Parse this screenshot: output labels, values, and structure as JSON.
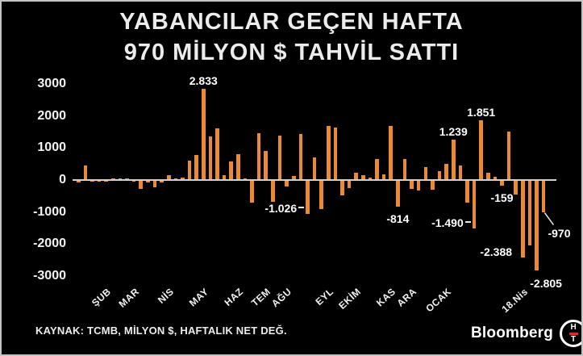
{
  "title": {
    "line1": "YABANCILAR GEÇEN HAFTA",
    "line2": "970 MİLYON $ TAHVİL SATTI"
  },
  "footer": {
    "source": "KAYNAK: TCMB, MİLYON $, HAFTALIK NET DEĞ."
  },
  "branding": {
    "name": "Bloomberg",
    "icon_top": "H",
    "icon_bottom": "T"
  },
  "colors": {
    "background": "#000000",
    "bar": "#EC8A33",
    "text": "#FFFFFF",
    "axis_line": "#CFCFCF",
    "frame_border": "#C4C4C4",
    "logo_red": "#D93025"
  },
  "chart_data": {
    "type": "bar",
    "title": "YABANCILAR GEÇEN HAFTA 970 MİLYON $ TAHVİL SATTI",
    "unit": "MİLYON $",
    "ylim": [
      -3000,
      3000
    ],
    "grid": false,
    "y_ticks": [
      3000,
      2000,
      1000,
      0,
      -1000,
      -2000,
      -3000
    ],
    "values": [
      -60,
      440,
      -30,
      -25,
      -20,
      30,
      20,
      25,
      -20,
      -250,
      -60,
      -190,
      -40,
      130,
      30,
      60,
      590,
      760,
      2833,
      1340,
      1590,
      130,
      550,
      780,
      30,
      -670,
      1440,
      890,
      -660,
      1370,
      -170,
      100,
      1410,
      -1026,
      670,
      -870,
      1670,
      1600,
      -450,
      -220,
      200,
      120,
      40,
      620,
      140,
      1650,
      -814,
      640,
      -250,
      -300,
      370,
      -280,
      250,
      480,
      1239,
      430,
      -670,
      -1490,
      1851,
      190,
      80,
      -159,
      1475,
      -420,
      -2388,
      -2020,
      -2805,
      -970
    ],
    "month_ticks": [
      {
        "label": "ŞUB",
        "bar": 3
      },
      {
        "label": "MAR",
        "bar": 7
      },
      {
        "label": "NİS",
        "bar": 12
      },
      {
        "label": "MAY",
        "bar": 17
      },
      {
        "label": "HAZ",
        "bar": 22
      },
      {
        "label": "TEM",
        "bar": 26
      },
      {
        "label": "AĞU",
        "bar": 29
      },
      {
        "label": "EYL",
        "bar": 35
      },
      {
        "label": "EKİM",
        "bar": 39
      },
      {
        "label": "KAS",
        "bar": 44
      },
      {
        "label": "ARA",
        "bar": 47
      },
      {
        "label": "OCAK",
        "bar": 52
      },
      {
        "label": "18.Nis",
        "bar": 63
      }
    ],
    "value_labels": [
      {
        "text": "2.833",
        "bar": 18,
        "pos": "above"
      },
      {
        "text": "-1.026",
        "bar": 33,
        "pos": "left-dash"
      },
      {
        "text": "-814",
        "bar": 46,
        "pos": "below"
      },
      {
        "text": "1.239",
        "bar": 54,
        "pos": "above"
      },
      {
        "text": "-1.490",
        "bar": 57,
        "pos": "left-dash"
      },
      {
        "text": "1.851",
        "bar": 58,
        "pos": "above"
      },
      {
        "text": "-159",
        "bar": 61,
        "pos": "below"
      },
      {
        "text": "-2.388",
        "bar": 64,
        "pos": "left"
      },
      {
        "text": "-2.805",
        "bar": 66,
        "pos": "right-below"
      },
      {
        "text": "-970",
        "bar": 67,
        "pos": "callout"
      }
    ]
  }
}
